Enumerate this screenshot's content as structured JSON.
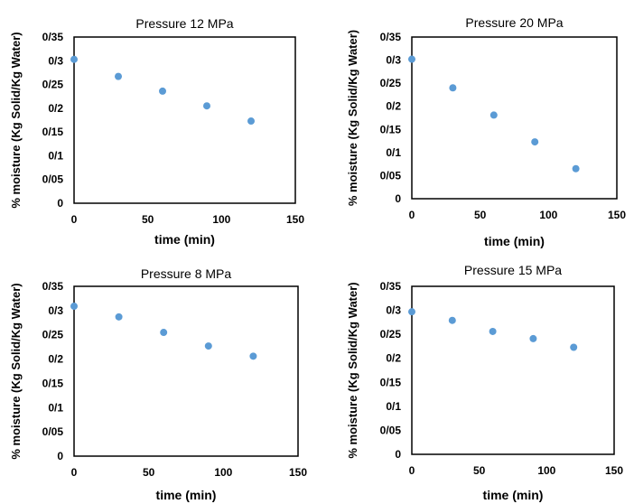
{
  "chart_data": [
    {
      "type": "scatter",
      "title": "Pressure 12 MPa",
      "xlabel": "time (min)",
      "ylabel": "% moisture (Kg Solid/Kg Water)",
      "xlim": [
        0,
        150
      ],
      "ylim": [
        0,
        0.35
      ],
      "x_ticks": [
        "0",
        "50",
        "100",
        "150"
      ],
      "y_ticks": [
        "0",
        "0/05",
        "0/1",
        "0/15",
        "0/2",
        "0/25",
        "0/3",
        "0/35"
      ],
      "x": [
        0,
        30,
        60,
        90,
        120
      ],
      "y": [
        0.303,
        0.267,
        0.236,
        0.205,
        0.173
      ],
      "color": "#5b9bd5",
      "grid": false
    },
    {
      "type": "scatter",
      "title": "Pressure 20 MPa",
      "xlabel": "time (min)",
      "ylabel": "% moisture (Kg Solid/Kg Water)",
      "xlim": [
        0,
        150
      ],
      "ylim": [
        0,
        0.35
      ],
      "x_ticks": [
        "0",
        "50",
        "100",
        "150"
      ],
      "y_ticks": [
        "0",
        "0/05",
        "0/1",
        "0/15",
        "0/2",
        "0/25",
        "0/3",
        "0/35"
      ],
      "x": [
        0,
        30,
        60,
        90,
        120
      ],
      "y": [
        0.302,
        0.24,
        0.181,
        0.123,
        0.065
      ],
      "color": "#5b9bd5",
      "grid": false
    },
    {
      "type": "scatter",
      "title": "Pressure 8 MPa",
      "xlabel": "time (min)",
      "ylabel": "% moisture (Kg Solid/Kg Water)",
      "xlim": [
        0,
        150
      ],
      "ylim": [
        0,
        0.35
      ],
      "x_ticks": [
        "0",
        "50",
        "100",
        "150"
      ],
      "y_ticks": [
        "0",
        "0/05",
        "0/1",
        "0/15",
        "0/2",
        "0/25",
        "0/3",
        "0/35"
      ],
      "x": [
        0,
        30,
        60,
        90,
        120
      ],
      "y": [
        0.309,
        0.287,
        0.255,
        0.227,
        0.206
      ],
      "color": "#5b9bd5",
      "grid": false
    },
    {
      "type": "scatter",
      "title": "Pressure 15 MPa",
      "xlabel": "time (min)",
      "ylabel": "% moisture (Kg Solid/Kg Water)",
      "xlim": [
        0,
        150
      ],
      "ylim": [
        0,
        0.35
      ],
      "x_ticks": [
        "0",
        "50",
        "100",
        "150"
      ],
      "y_ticks": [
        "0",
        "0/05",
        "0/1",
        "0/15",
        "0/2",
        "0/25",
        "0/3",
        "0/35"
      ],
      "x": [
        0,
        30,
        60,
        90,
        120
      ],
      "y": [
        0.297,
        0.279,
        0.256,
        0.241,
        0.223
      ],
      "color": "#5b9bd5",
      "grid": false
    }
  ]
}
